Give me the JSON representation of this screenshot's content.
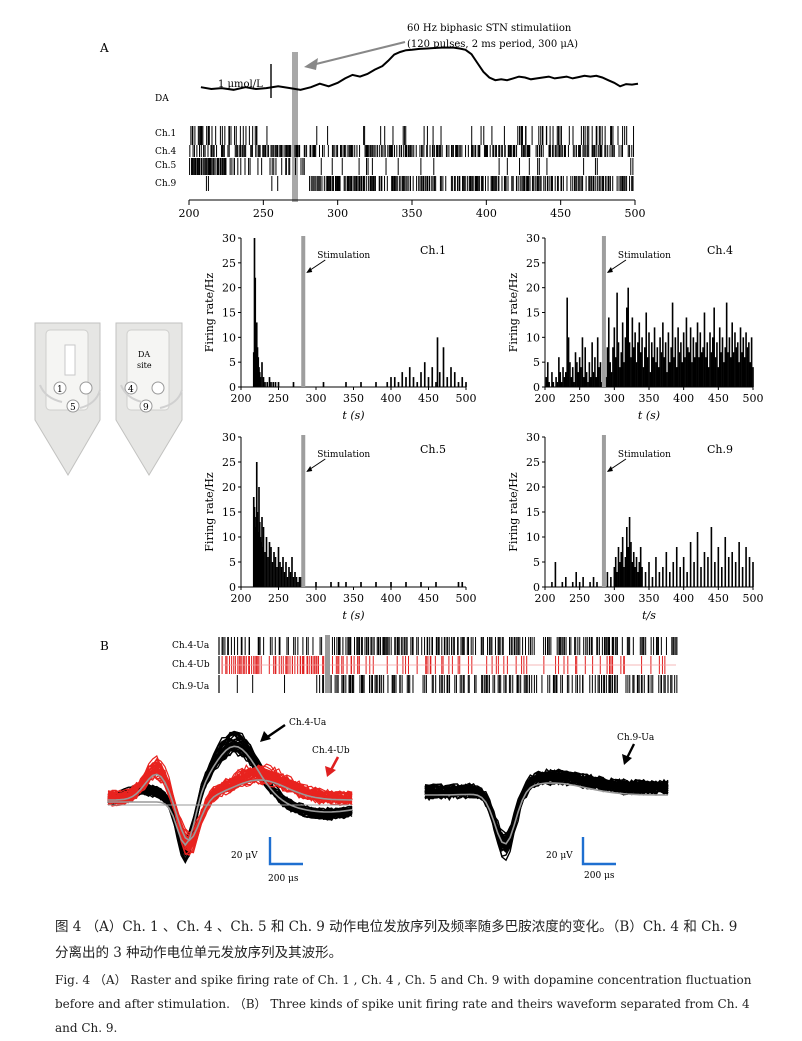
{
  "panelA": {
    "label": "A",
    "stim_annotation": [
      "60 Hz biphasic STN stimulatiion",
      "(120 pulses, 2 ms period, 300 μA)"
    ],
    "da_label": "DA",
    "scale_label": "1 μmol/L",
    "raster_channels": [
      "Ch.1",
      "Ch.4",
      "Ch.5",
      "Ch.9"
    ],
    "xaxis": {
      "ticks": [
        200,
        250,
        300,
        350,
        400,
        450,
        500
      ],
      "range": [
        200,
        500
      ]
    },
    "stim_time": 280,
    "da_trace": [
      [
        208,
        83
      ],
      [
        215,
        83.4
      ],
      [
        222,
        83.2
      ],
      [
        230,
        83.6
      ],
      [
        238,
        83.0
      ],
      [
        245,
        83.4
      ],
      [
        252,
        83.2
      ],
      [
        260,
        82.8
      ],
      [
        268,
        83.2
      ],
      [
        275,
        83.6
      ],
      [
        282,
        83.0
      ],
      [
        288,
        82.2
      ],
      [
        294,
        82.8
      ],
      [
        300,
        82.0
      ],
      [
        305,
        81.0
      ],
      [
        310,
        80.2
      ],
      [
        315,
        80.6
      ],
      [
        320,
        80.0
      ],
      [
        325,
        79.0
      ],
      [
        330,
        78.2
      ],
      [
        334,
        77.0
      ],
      [
        338,
        75.6
      ],
      [
        342,
        75.0
      ],
      [
        346,
        74.6
      ],
      [
        350,
        74.5
      ],
      [
        355,
        74.3
      ],
      [
        360,
        74.2
      ],
      [
        365,
        74.1
      ],
      [
        370,
        74.0
      ],
      [
        375,
        74.0
      ],
      [
        378,
        74.0
      ],
      [
        382,
        74.2
      ],
      [
        386,
        74.5
      ],
      [
        390,
        75.5
      ],
      [
        394,
        77.5
      ],
      [
        398,
        79.5
      ],
      [
        402,
        80.8
      ],
      [
        406,
        81.4
      ],
      [
        410,
        81.2
      ],
      [
        414,
        81.4
      ],
      [
        418,
        81.0
      ],
      [
        422,
        80.6
      ],
      [
        426,
        80.8
      ],
      [
        430,
        81.2
      ],
      [
        434,
        81.0
      ],
      [
        438,
        80.8
      ],
      [
        442,
        80.6
      ],
      [
        446,
        81.0
      ],
      [
        450,
        80.8
      ],
      [
        454,
        80.6
      ],
      [
        458,
        81.0
      ],
      [
        462,
        80.7
      ],
      [
        466,
        80.4
      ],
      [
        470,
        80.6
      ],
      [
        474,
        80.4
      ],
      [
        478,
        80.8
      ],
      [
        482,
        81.4
      ],
      [
        486,
        82.0
      ],
      [
        490,
        82.8
      ],
      [
        494,
        82.3
      ],
      [
        498,
        82.4
      ],
      [
        502,
        82.2
      ]
    ]
  },
  "chart_data": [
    {
      "type": "bar",
      "title": "Ch.1",
      "xlabel": "t (s)",
      "ylabel": "Firing rate/Hz",
      "xlim": [
        200,
        500
      ],
      "ylim": [
        0,
        30
      ],
      "xticks": [
        200,
        250,
        300,
        350,
        400,
        450,
        500
      ],
      "yticks": [
        0,
        5,
        10,
        15,
        20,
        25,
        30
      ],
      "annotation": "Stimulation",
      "stim_time": 283,
      "x": [
        217,
        218,
        219,
        220,
        221,
        222,
        223,
        224,
        225,
        226,
        228,
        230,
        232,
        235,
        238,
        240,
        243,
        246,
        250,
        255,
        260,
        270,
        280,
        300,
        310,
        320,
        330,
        340,
        350,
        360,
        370,
        380,
        390,
        395,
        400,
        405,
        410,
        415,
        420,
        425,
        430,
        435,
        440,
        445,
        450,
        455,
        460,
        462,
        465,
        470,
        475,
        480,
        485,
        490,
        495,
        500
      ],
      "values": [
        7,
        30,
        22,
        9,
        13,
        8,
        6,
        4,
        3,
        2,
        5,
        2,
        1,
        1,
        2,
        1,
        1,
        1,
        1,
        0,
        0,
        1,
        0,
        0,
        1,
        0,
        0,
        1,
        0,
        1,
        0,
        1,
        0,
        1,
        2,
        2,
        1,
        3,
        2,
        4,
        2,
        1,
        3,
        5,
        2,
        4,
        1,
        10,
        3,
        8,
        2,
        4,
        3,
        1,
        2,
        1
      ]
    },
    {
      "type": "bar",
      "title": "Ch.4",
      "xlabel": "t (s)",
      "ylabel": "Firing rate/Hz",
      "xlim": [
        200,
        500
      ],
      "ylim": [
        0,
        30
      ],
      "xticks": [
        200,
        250,
        300,
        350,
        400,
        450,
        500
      ],
      "yticks": [
        0,
        5,
        10,
        15,
        20,
        25,
        30
      ],
      "annotation": "Stimulation",
      "stim_time": 285,
      "x": [
        202,
        204,
        206,
        208,
        210,
        212,
        214,
        216,
        218,
        220,
        222,
        224,
        226,
        228,
        230,
        232,
        234,
        236,
        238,
        240,
        242,
        244,
        246,
        248,
        250,
        252,
        254,
        256,
        258,
        260,
        262,
        264,
        266,
        268,
        270,
        272,
        274,
        276,
        278,
        280,
        282,
        284,
        286,
        288,
        290,
        292,
        294,
        296,
        298,
        300,
        302,
        304,
        306,
        308,
        310,
        312,
        314,
        316,
        318,
        320,
        322,
        324,
        326,
        328,
        330,
        332,
        334,
        336,
        338,
        340,
        342,
        344,
        346,
        348,
        350,
        352,
        354,
        356,
        358,
        360,
        362,
        364,
        366,
        368,
        370,
        372,
        374,
        376,
        378,
        380,
        382,
        384,
        386,
        388,
        390,
        392,
        394,
        396,
        398,
        400,
        402,
        404,
        406,
        408,
        410,
        412,
        414,
        416,
        418,
        420,
        422,
        424,
        426,
        428,
        430,
        432,
        434,
        436,
        438,
        440,
        442,
        444,
        446,
        448,
        450,
        452,
        454,
        456,
        458,
        460,
        462,
        464,
        466,
        468,
        470,
        472,
        474,
        476,
        478,
        480,
        482,
        484,
        486,
        488,
        490,
        492,
        494,
        496,
        498,
        500
      ],
      "values": [
        2,
        5,
        1,
        0,
        3,
        1,
        0,
        2,
        1,
        6,
        3,
        1,
        4,
        2,
        3,
        18,
        10,
        5,
        2,
        4,
        1,
        7,
        5,
        3,
        6,
        4,
        10,
        2,
        8,
        3,
        1,
        5,
        2,
        9,
        3,
        6,
        2,
        10,
        4,
        5,
        1,
        3,
        6,
        2,
        8,
        14,
        5,
        3,
        8,
        12,
        6,
        19,
        9,
        4,
        7,
        13,
        5,
        10,
        16,
        20,
        9,
        6,
        14,
        8,
        11,
        5,
        9,
        13,
        7,
        10,
        4,
        8,
        15,
        6,
        11,
        3,
        9,
        6,
        12,
        5,
        8,
        4,
        10,
        7,
        13,
        6,
        9,
        3,
        11,
        5,
        8,
        17,
        6,
        10,
        4,
        12,
        7,
        9,
        5,
        11,
        6,
        14,
        8,
        7,
        12,
        5,
        10,
        6,
        9,
        13,
        6,
        11,
        7,
        8,
        15,
        6,
        9,
        4,
        11,
        7,
        10,
        16,
        6,
        9,
        4,
        12,
        7,
        10,
        5,
        8,
        17,
        7,
        10,
        6,
        13,
        7,
        11,
        8,
        9,
        5,
        12,
        7,
        10,
        6,
        11,
        8,
        9,
        5,
        10,
        4
      ]
    },
    {
      "type": "bar",
      "title": "Ch.5",
      "xlabel": "t (s)",
      "ylabel": "Firing rate/Hz",
      "xlim": [
        200,
        500
      ],
      "ylim": [
        0,
        30
      ],
      "xticks": [
        200,
        250,
        300,
        350,
        400,
        450,
        500
      ],
      "yticks": [
        0,
        5,
        10,
        15,
        20,
        25,
        30
      ],
      "annotation": "Stimulation",
      "stim_time": 283,
      "x": [
        217,
        218,
        219,
        220,
        221,
        222,
        223,
        224,
        225,
        226,
        227,
        228,
        229,
        230,
        232,
        234,
        236,
        238,
        240,
        242,
        244,
        246,
        248,
        250,
        252,
        254,
        256,
        258,
        260,
        262,
        264,
        266,
        268,
        270,
        272,
        274,
        276,
        278,
        280,
        290,
        300,
        310,
        320,
        330,
        340,
        350,
        360,
        370,
        380,
        390,
        400,
        410,
        420,
        430,
        440,
        450,
        460,
        470,
        480,
        490,
        495
      ],
      "values": [
        18,
        16,
        12,
        14,
        25,
        15,
        11,
        20,
        13,
        10,
        9,
        14,
        8,
        12,
        7,
        10,
        6,
        9,
        8,
        5,
        7,
        6,
        4,
        8,
        5,
        4,
        6,
        3,
        5,
        2,
        4,
        3,
        6,
        2,
        3,
        2,
        1,
        2,
        2,
        0,
        1,
        0,
        1,
        1,
        1,
        0,
        1,
        0,
        1,
        0,
        1,
        0,
        1,
        0,
        1,
        0,
        1,
        0,
        0,
        1,
        1
      ]
    },
    {
      "type": "bar",
      "title": "Ch.9",
      "xlabel": "t/s",
      "ylabel": "Firing rate/Hz",
      "xlim": [
        200,
        500
      ],
      "ylim": [
        0,
        30
      ],
      "xticks": [
        200,
        250,
        300,
        350,
        400,
        450,
        500
      ],
      "yticks": [
        0,
        5,
        10,
        15,
        20,
        25,
        30
      ],
      "annotation": "Stimulation",
      "stim_time": 285,
      "x": [
        210,
        215,
        220,
        225,
        230,
        235,
        240,
        245,
        250,
        255,
        260,
        265,
        270,
        275,
        280,
        285,
        290,
        295,
        300,
        302,
        304,
        306,
        308,
        310,
        312,
        314,
        316,
        318,
        320,
        322,
        324,
        326,
        328,
        330,
        332,
        334,
        336,
        338,
        340,
        345,
        350,
        355,
        360,
        365,
        370,
        375,
        380,
        385,
        390,
        395,
        400,
        405,
        410,
        415,
        420,
        425,
        430,
        435,
        440,
        445,
        450,
        455,
        460,
        465,
        470,
        475,
        480,
        485,
        490,
        495,
        500
      ],
      "values": [
        1,
        5,
        0,
        1,
        2,
        0,
        1,
        3,
        1,
        2,
        0,
        1,
        2,
        1,
        0,
        1,
        3,
        2,
        4,
        6,
        3,
        8,
        5,
        7,
        10,
        4,
        6,
        12,
        8,
        14,
        9,
        5,
        7,
        4,
        6,
        3,
        5,
        8,
        4,
        3,
        5,
        2,
        6,
        3,
        4,
        7,
        3,
        5,
        8,
        4,
        6,
        3,
        9,
        5,
        11,
        4,
        7,
        6,
        12,
        5,
        8,
        4,
        10,
        6,
        7,
        5,
        9,
        4,
        8,
        6,
        5
      ]
    }
  ],
  "panelB": {
    "label": "B",
    "raster_labels": [
      "Ch.4-Ua",
      "Ch.4-Ub",
      "Ch.9-Ua"
    ],
    "waveform_labels": {
      "ch4ua": "Ch.4-Ua",
      "ch4ub": "Ch.4-Ub",
      "ch9ua": "Ch.9-Ua"
    },
    "scale_voltage": "20 μV",
    "scale_time": "200 μs"
  },
  "electrode": {
    "sites_left": [
      "1",
      "5"
    ],
    "sites_right": [
      "4",
      "9"
    ],
    "da_site": "DA\nsite"
  },
  "caption": {
    "zh": "图 4 （A）Ch. 1 、Ch. 4 、Ch. 5 和 Ch. 9 动作电位发放序列及频率随多巴胺浓度的变化。（B）Ch. 4 和 Ch. 9 分离出的 3 种动作电位单元发放序列及其波形。",
    "en": "Fig. 4 （A） Raster and spike firing rate of Ch. 1 , Ch. 4 , Ch. 5 and Ch. 9 with dopamine concentration fluctuation before and after stimulation. （B） Three kinds of spike unit firing rate and theirs waveform separated from Ch. 4 and Ch. 9."
  }
}
